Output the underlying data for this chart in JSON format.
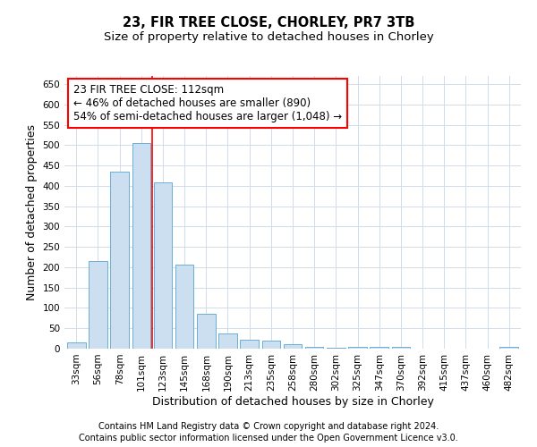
{
  "title_line1": "23, FIR TREE CLOSE, CHORLEY, PR7 3TB",
  "title_line2": "Size of property relative to detached houses in Chorley",
  "xlabel": "Distribution of detached houses by size in Chorley",
  "ylabel": "Number of detached properties",
  "categories": [
    "33sqm",
    "56sqm",
    "78sqm",
    "101sqm",
    "123sqm",
    "145sqm",
    "168sqm",
    "190sqm",
    "213sqm",
    "235sqm",
    "258sqm",
    "280sqm",
    "302sqm",
    "325sqm",
    "347sqm",
    "370sqm",
    "392sqm",
    "415sqm",
    "437sqm",
    "460sqm",
    "482sqm"
  ],
  "values": [
    15,
    215,
    435,
    505,
    408,
    207,
    85,
    38,
    22,
    20,
    10,
    5,
    3,
    5,
    5,
    5,
    0,
    0,
    0,
    0,
    5
  ],
  "bar_color": "#ccdff0",
  "bar_edge_color": "#6aafd6",
  "grid_color": "#d0dce8",
  "annotation_line1": "23 FIR TREE CLOSE: 112sqm",
  "annotation_line2": "← 46% of detached houses are smaller (890)",
  "annotation_line3": "54% of semi-detached houses are larger (1,048) →",
  "annotation_box_edge_color": "red",
  "red_line_x": 3.5,
  "ylim": [
    0,
    670
  ],
  "yticks": [
    0,
    50,
    100,
    150,
    200,
    250,
    300,
    350,
    400,
    450,
    500,
    550,
    600,
    650
  ],
  "footer_line1": "Contains HM Land Registry data © Crown copyright and database right 2024.",
  "footer_line2": "Contains public sector information licensed under the Open Government Licence v3.0.",
  "bg_color": "white",
  "title_fontsize": 10.5,
  "subtitle_fontsize": 9.5,
  "axis_label_fontsize": 9,
  "tick_fontsize": 7.5,
  "annotation_fontsize": 8.5,
  "footer_fontsize": 7
}
